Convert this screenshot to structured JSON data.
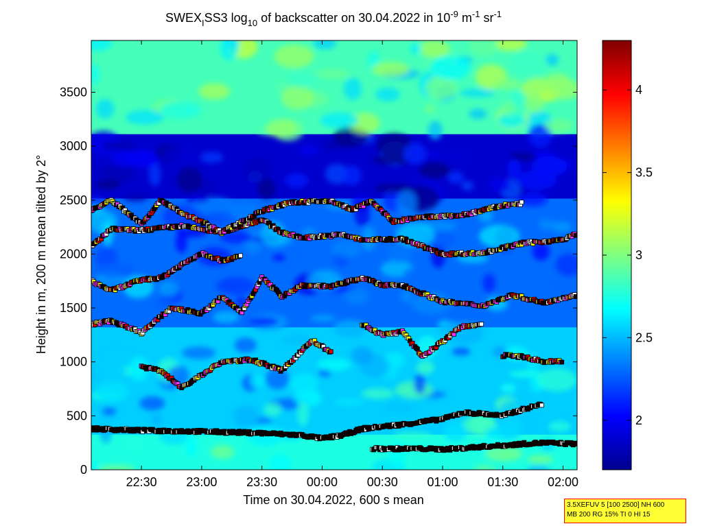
{
  "title_parts": {
    "a": "SWEX",
    "a_sub": "I",
    "b": "SS3 log",
    "b_sub": "10",
    "c": " of backscatter on 30.04.2022 in 10",
    "c_sup": "-9",
    "d": " m",
    "d_sup": "-1",
    "e": " sr",
    "e_sup": "-1"
  },
  "info_box": {
    "line1": "3.5XEFUV 5 [100 2500] NH 600",
    "line2": "MB 200 RG 15% TI 0 HI 15"
  },
  "colors": {
    "marker_black": "#1a0000",
    "marker_white": "#ffffff",
    "marker_red": "#e00000",
    "marker_yellow": "#ffff00",
    "marker_magenta": "#ff33ff"
  },
  "chart_data": {
    "type": "heatmap",
    "xlabel": "Time on 30.04.2022, 600 s mean",
    "ylabel": "Height in m, 200 m mean tilted by 2°",
    "x_ticks": [
      "22:30",
      "23:00",
      "23:30",
      "00:00",
      "00:30",
      "01:00",
      "01:30",
      "02:00"
    ],
    "x_tick_minutes": [
      0,
      30,
      60,
      90,
      120,
      150,
      180,
      210
    ],
    "xlim_minutes": [
      -25,
      217
    ],
    "y_ticks": [
      0,
      500,
      1000,
      1500,
      2000,
      2500,
      3000,
      3500
    ],
    "ylim": [
      0,
      3980
    ],
    "colorbar": {
      "ticks": [
        2,
        2.5,
        3,
        3.5,
        4
      ],
      "range": [
        1.7,
        4.3
      ]
    },
    "field_description_layers": [
      {
        "from": 0,
        "to": 350,
        "value": 2.75
      },
      {
        "from": 350,
        "to": 1300,
        "value": 2.55
      },
      {
        "from": 1300,
        "to": 2500,
        "value": 2.3
      },
      {
        "from": 2500,
        "to": 3100,
        "value": 1.9
      },
      {
        "from": 3100,
        "to": 3980,
        "value": 2.85
      }
    ],
    "layer_tracks": [
      {
        "name": "",
        "points": [
          [
            -25,
            380
          ],
          [
            0,
            365
          ],
          [
            30,
            355
          ],
          [
            60,
            340
          ],
          [
            80,
            320
          ],
          [
            90,
            290
          ],
          [
            100,
            320
          ],
          [
            110,
            380
          ],
          [
            130,
            420
          ],
          [
            150,
            470
          ],
          [
            160,
            530
          ],
          [
            170,
            520
          ],
          [
            180,
            500
          ],
          [
            190,
            560
          ],
          [
            200,
            610
          ]
        ]
      },
      {
        "name": "",
        "points": [
          [
            115,
            195
          ],
          [
            140,
            195
          ],
          [
            150,
            190
          ],
          [
            160,
            200
          ],
          [
            170,
            215
          ],
          [
            180,
            225
          ],
          [
            190,
            240
          ],
          [
            200,
            250
          ],
          [
            217,
            240
          ]
        ]
      },
      {
        "name": "",
        "points": [
          [
            -25,
            1750
          ],
          [
            -15,
            1660
          ],
          [
            0,
            1760
          ],
          [
            10,
            1780
          ],
          [
            20,
            1900
          ],
          [
            30,
            2010
          ],
          [
            40,
            1940
          ],
          [
            50,
            1980
          ]
        ]
      },
      {
        "name": "",
        "points": [
          [
            -25,
            2070
          ],
          [
            -15,
            2230
          ],
          [
            0,
            2220
          ],
          [
            20,
            2260
          ],
          [
            40,
            2200
          ],
          [
            60,
            2320
          ],
          [
            70,
            2200
          ],
          [
            80,
            2150
          ],
          [
            100,
            2180
          ],
          [
            110,
            2130
          ],
          [
            130,
            2140
          ],
          [
            150,
            2000
          ],
          [
            170,
            2010
          ],
          [
            190,
            2100
          ],
          [
            210,
            2130
          ],
          [
            217,
            2190
          ]
        ]
      },
      {
        "name": "",
        "points": [
          [
            -25,
            1350
          ],
          [
            -15,
            1380
          ],
          [
            0,
            1270
          ],
          [
            15,
            1500
          ],
          [
            30,
            1450
          ],
          [
            40,
            1600
          ],
          [
            50,
            1460
          ],
          [
            60,
            1780
          ],
          [
            70,
            1610
          ],
          [
            80,
            1710
          ],
          [
            95,
            1700
          ],
          [
            110,
            1780
          ],
          [
            120,
            1710
          ],
          [
            130,
            1710
          ],
          [
            150,
            1560
          ],
          [
            170,
            1520
          ],
          [
            185,
            1620
          ],
          [
            200,
            1550
          ],
          [
            217,
            1620
          ]
        ]
      },
      {
        "name": "",
        "points": [
          [
            110,
            1350
          ],
          [
            120,
            1250
          ],
          [
            130,
            1280
          ],
          [
            140,
            1050
          ],
          [
            160,
            1330
          ],
          [
            170,
            1350
          ]
        ]
      },
      {
        "name": "",
        "points": [
          [
            0,
            950
          ],
          [
            10,
            920
          ],
          [
            20,
            760
          ],
          [
            40,
            1000
          ],
          [
            55,
            1020
          ],
          [
            70,
            920
          ],
          [
            85,
            1200
          ],
          [
            95,
            1080
          ]
        ]
      },
      {
        "name": "",
        "points": [
          [
            180,
            1060
          ],
          [
            190,
            1050
          ],
          [
            200,
            1000
          ],
          [
            210,
            1010
          ]
        ]
      },
      {
        "name": "",
        "points": [
          [
            -25,
            2400
          ],
          [
            -15,
            2500
          ],
          [
            0,
            2280
          ],
          [
            10,
            2500
          ],
          [
            20,
            2380
          ],
          [
            30,
            2300
          ],
          [
            40,
            2200
          ],
          [
            60,
            2400
          ],
          [
            75,
            2480
          ],
          [
            95,
            2490
          ],
          [
            105,
            2410
          ],
          [
            115,
            2490
          ],
          [
            125,
            2300
          ],
          [
            140,
            2340
          ],
          [
            160,
            2360
          ],
          [
            180,
            2450
          ],
          [
            190,
            2470
          ]
        ]
      }
    ]
  }
}
